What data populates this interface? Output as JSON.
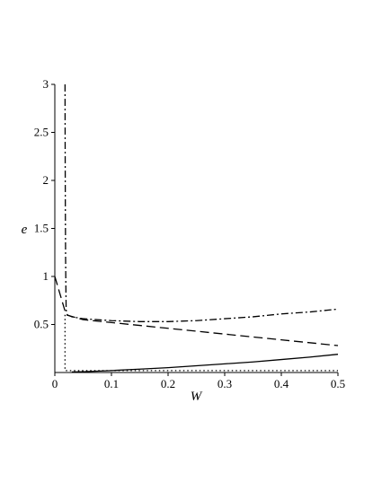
{
  "chart_data": {
    "type": "line",
    "xlabel": "W",
    "ylabel": "e",
    "xlim": [
      0,
      0.5
    ],
    "ylim": [
      0,
      3
    ],
    "x_ticks": [
      "0",
      "0.1",
      "0.2",
      "0.3",
      "0.4",
      "0.5"
    ],
    "y_ticks": [
      "0.5",
      "1",
      "1.5",
      "2",
      "2.5",
      "3"
    ],
    "grid": false,
    "series": [
      {
        "style": "solid",
        "x": [
          0.03,
          0.05,
          0.1,
          0.15,
          0.2,
          0.25,
          0.3,
          0.35,
          0.4,
          0.45,
          0.5
        ],
        "y": [
          0.005,
          0.008,
          0.02,
          0.035,
          0.05,
          0.07,
          0.09,
          0.11,
          0.135,
          0.16,
          0.19
        ]
      },
      {
        "style": "dashed",
        "x": [
          0.0,
          0.02,
          0.05,
          0.1,
          0.15,
          0.2,
          0.25,
          0.3,
          0.35,
          0.4,
          0.45,
          0.5
        ],
        "y": [
          1.0,
          0.6,
          0.55,
          0.52,
          0.49,
          0.46,
          0.43,
          0.4,
          0.37,
          0.34,
          0.31,
          0.28
        ]
      },
      {
        "style": "dashdot",
        "x": [
          0.018,
          0.0182,
          0.0185,
          0.019,
          0.0195,
          0.02,
          0.022,
          0.03,
          0.05,
          0.1,
          0.15,
          0.2,
          0.25,
          0.3,
          0.35,
          0.4,
          0.45,
          0.5
        ],
        "y": [
          3.0,
          2.4,
          1.8,
          1.2,
          0.9,
          0.65,
          0.6,
          0.58,
          0.56,
          0.54,
          0.53,
          0.53,
          0.54,
          0.56,
          0.58,
          0.61,
          0.63,
          0.66
        ]
      },
      {
        "style": "dotted",
        "x": [
          0.018,
          0.018,
          0.03,
          0.1,
          0.2,
          0.3,
          0.4,
          0.5
        ],
        "y": [
          0.6,
          0.02,
          0.02,
          0.02,
          0.02,
          0.02,
          0.02,
          0.02
        ]
      }
    ]
  }
}
